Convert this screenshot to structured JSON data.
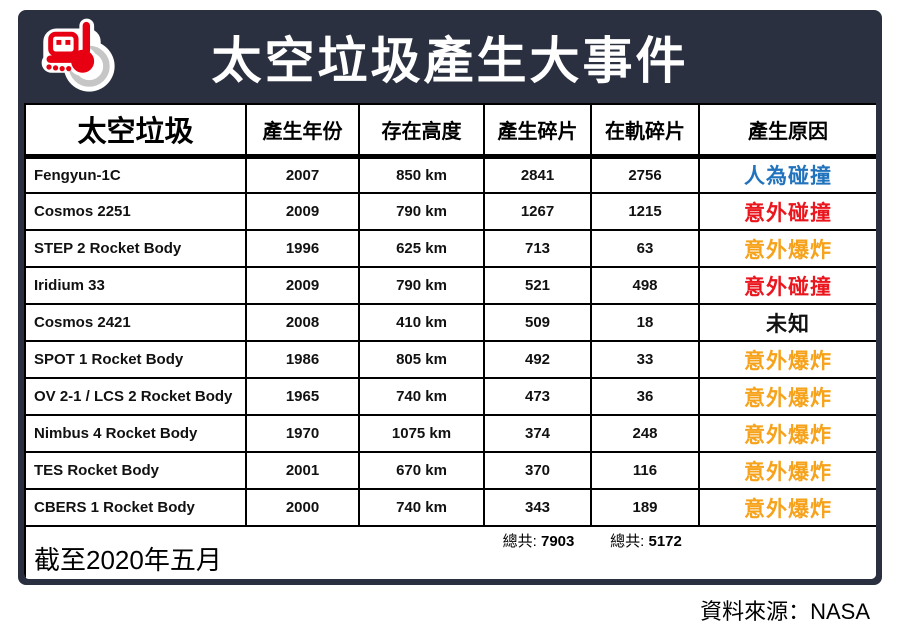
{
  "colors": {
    "navy": "#2a3040",
    "blue": "#2273bd",
    "red": "#ea151d",
    "orange": "#f6a21b",
    "black": "#111111",
    "logo_red": "#e60012",
    "logo_gray": "#c6c6c6"
  },
  "header": {
    "title": "太空垃圾產生大事件",
    "logo": "dotdotnews-logo"
  },
  "table": {
    "columns": [
      "太空垃圾",
      "產生年份",
      "存在高度",
      "產生碎片",
      "在軌碎片",
      "產生原因"
    ],
    "rows": [
      {
        "name": "Fengyun-1C",
        "year": "2007",
        "altitude": "850 km",
        "fragments_generated": "2841",
        "fragments_in_orbit": "2756",
        "cause": "人為碰撞",
        "cause_color": "blue"
      },
      {
        "name": "Cosmos 2251",
        "year": "2009",
        "altitude": "790 km",
        "fragments_generated": "1267",
        "fragments_in_orbit": "1215",
        "cause": "意外碰撞",
        "cause_color": "red"
      },
      {
        "name": "STEP 2 Rocket Body",
        "year": "1996",
        "altitude": "625 km",
        "fragments_generated": "713",
        "fragments_in_orbit": "63",
        "cause": "意外爆炸",
        "cause_color": "orange"
      },
      {
        "name": "Iridium 33",
        "year": "2009",
        "altitude": "790 km",
        "fragments_generated": "521",
        "fragments_in_orbit": "498",
        "cause": "意外碰撞",
        "cause_color": "red"
      },
      {
        "name": "Cosmos 2421",
        "year": "2008",
        "altitude": "410 km",
        "fragments_generated": "509",
        "fragments_in_orbit": "18",
        "cause": "未知",
        "cause_color": "black"
      },
      {
        "name": "SPOT 1 Rocket Body",
        "year": "1986",
        "altitude": "805 km",
        "fragments_generated": "492",
        "fragments_in_orbit": "33",
        "cause": "意外爆炸",
        "cause_color": "orange"
      },
      {
        "name": "OV 2-1 / LCS 2 Rocket Body",
        "year": "1965",
        "altitude": "740 km",
        "fragments_generated": "473",
        "fragments_in_orbit": "36",
        "cause": "意外爆炸",
        "cause_color": "orange"
      },
      {
        "name": "Nimbus 4 Rocket Body",
        "year": "1970",
        "altitude": "1075 km",
        "fragments_generated": "374",
        "fragments_in_orbit": "248",
        "cause": "意外爆炸",
        "cause_color": "orange"
      },
      {
        "name": "TES Rocket Body",
        "year": "2001",
        "altitude": "670 km",
        "fragments_generated": "370",
        "fragments_in_orbit": "116",
        "cause": "意外爆炸",
        "cause_color": "orange"
      },
      {
        "name": "CBERS 1 Rocket Body",
        "year": "2000",
        "altitude": "740 km",
        "fragments_generated": "343",
        "fragments_in_orbit": "189",
        "cause": "意外爆炸",
        "cause_color": "orange"
      }
    ],
    "totals": {
      "label": "總共:",
      "fragments_generated_total": "7903",
      "fragments_in_orbit_total": "5172"
    },
    "as_of": "截至2020年五月"
  },
  "footer": {
    "source": "資料來源：NASA"
  },
  "chart_data": {
    "type": "table",
    "title": "太空垃圾產生大事件",
    "columns": [
      "太空垃圾",
      "產生年份",
      "存在高度",
      "產生碎片",
      "在軌碎片",
      "產生原因"
    ],
    "rows": [
      [
        "Fengyun-1C",
        2007,
        "850 km",
        2841,
        2756,
        "人為碰撞"
      ],
      [
        "Cosmos 2251",
        2009,
        "790 km",
        1267,
        1215,
        "意外碰撞"
      ],
      [
        "STEP 2 Rocket Body",
        1996,
        "625 km",
        713,
        63,
        "意外爆炸"
      ],
      [
        "Iridium 33",
        2009,
        "790 km",
        521,
        498,
        "意外碰撞"
      ],
      [
        "Cosmos 2421",
        2008,
        "410 km",
        509,
        18,
        "未知"
      ],
      [
        "SPOT 1 Rocket Body",
        1986,
        "805 km",
        492,
        33,
        "意外爆炸"
      ],
      [
        "OV 2-1 / LCS 2 Rocket Body",
        1965,
        "740 km",
        473,
        36,
        "意外爆炸"
      ],
      [
        "Nimbus 4 Rocket Body",
        1970,
        "1075 km",
        374,
        248,
        "意外爆炸"
      ],
      [
        "TES Rocket Body",
        2001,
        "670 km",
        370,
        116,
        "意外爆炸"
      ],
      [
        "CBERS 1 Rocket Body",
        2000,
        "740 km",
        343,
        189,
        "意外爆炸"
      ]
    ],
    "totals": {
      "產生碎片": 7903,
      "在軌碎片": 5172
    },
    "as_of": "截至2020年五月",
    "source": "NASA"
  }
}
